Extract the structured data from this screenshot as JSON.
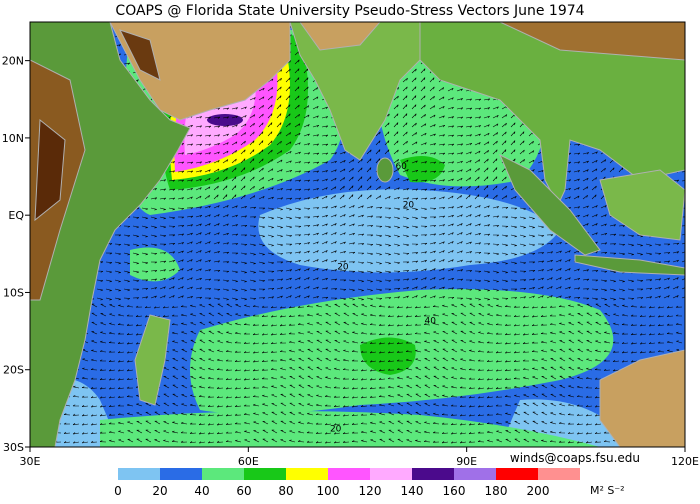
{
  "title": "COAPS @ Florida State University Pseudo-Stress Vectors  June 1974",
  "map": {
    "xlim": [
      30,
      120
    ],
    "ylim": [
      -30,
      25
    ],
    "xticks": [
      {
        "value": 30,
        "label": "30E"
      },
      {
        "value": 60,
        "label": "60E"
      },
      {
        "value": 90,
        "label": "90E"
      },
      {
        "value": 120,
        "label": "120E"
      }
    ],
    "yticks": [
      {
        "value": 20,
        "label": "20N"
      },
      {
        "value": 10,
        "label": "10N"
      },
      {
        "value": 0,
        "label": "EQ"
      },
      {
        "value": -10,
        "label": "10S"
      },
      {
        "value": -20,
        "label": "20S"
      },
      {
        "value": -30,
        "label": "30S"
      }
    ],
    "contour_labels": [
      {
        "lon": 82,
        "lat": 1,
        "label": "20"
      },
      {
        "lon": 73,
        "lat": -7,
        "label": "20"
      },
      {
        "lon": 85,
        "lat": -14,
        "label": "40"
      },
      {
        "lon": 81,
        "lat": 6,
        "label": "60"
      },
      {
        "lon": 72,
        "lat": -28,
        "label": "20"
      }
    ]
  },
  "credit": "winds@coaps.fsu.edu",
  "colorbar": {
    "ticks": [
      0,
      20,
      40,
      60,
      80,
      100,
      120,
      140,
      160,
      180,
      200
    ],
    "colors": [
      "#7ec4f2",
      "#2a6ce6",
      "#5ce87c",
      "#18c818",
      "#ffff00",
      "#ff55ff",
      "#ffaaff",
      "#4b0a8c",
      "#a070e8",
      "#ff0000",
      "#ff9090"
    ],
    "units": "M² S⁻²"
  }
}
